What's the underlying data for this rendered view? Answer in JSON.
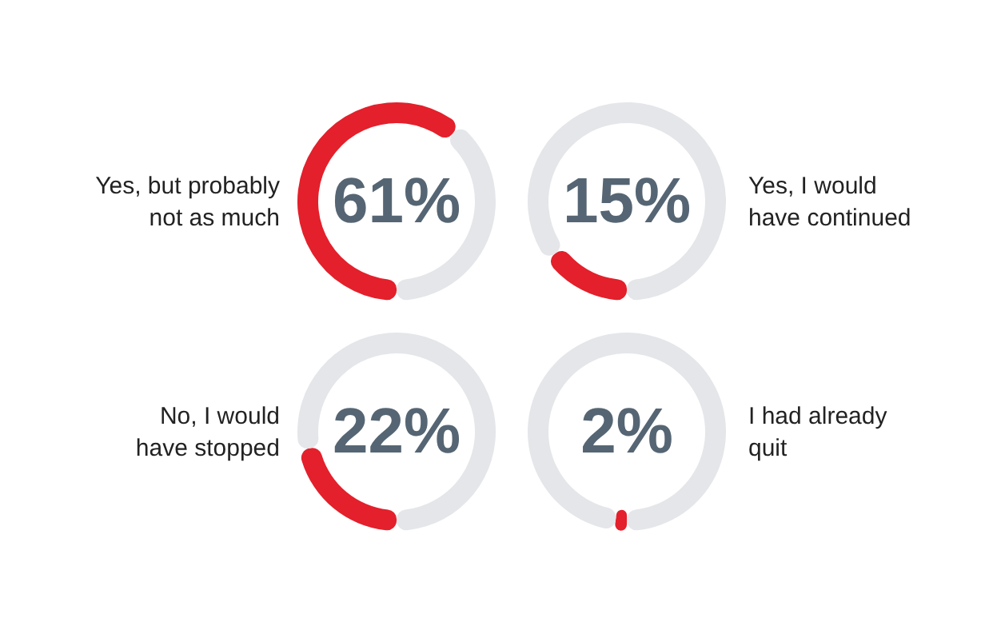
{
  "chart_data": [
    {
      "type": "donut",
      "title": "Yes, but probably\nnot as much",
      "categories": [
        null,
        null
      ],
      "values": [
        61,
        39
      ],
      "colors": [
        "#e3202b",
        "#e4e6e9"
      ],
      "annotations": [
        "61%"
      ]
    },
    {
      "type": "donut",
      "title": "Yes, I would\nhave continued",
      "categories": [
        null,
        null
      ],
      "values": [
        15,
        85
      ],
      "colors": [
        "#e3202b",
        "#e4e6e9"
      ],
      "annotations": [
        "15%"
      ]
    },
    {
      "type": "donut",
      "title": "No, I would\nhave stopped",
      "categories": [
        null,
        null
      ],
      "values": [
        22,
        78
      ],
      "colors": [
        "#e3202b",
        "#e4e6e9"
      ],
      "annotations": [
        "22%"
      ]
    },
    {
      "type": "donut",
      "title": "I had already\nquit",
      "categories": [
        null,
        null
      ],
      "values": [
        2,
        98
      ],
      "colors": [
        "#e3202b",
        "#e4e6e9"
      ],
      "annotations": [
        "2%"
      ]
    }
  ]
}
